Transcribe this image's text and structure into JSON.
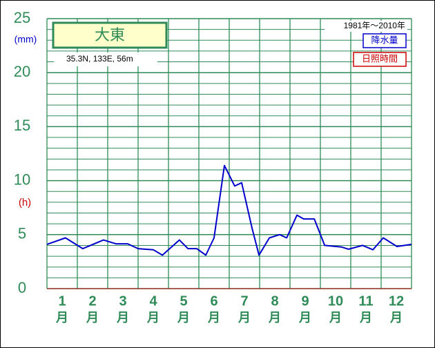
{
  "chart_data": {
    "type": "line",
    "station": "大東",
    "location": "35.3N,  133E,  56m",
    "period": "1981年〜2010年",
    "y_unit_left": "(mm)",
    "y_unit_right": "(h)",
    "x": [
      0,
      0.61,
      1.18,
      1.86,
      2.27,
      2.66,
      3.0,
      3.5,
      3.8,
      4.36,
      4.64,
      4.93,
      5.23,
      5.5,
      5.84,
      6.18,
      6.41,
      6.75,
      6.98,
      7.32,
      7.66,
      7.89,
      8.23,
      8.45,
      8.8,
      9.14,
      9.7,
      9.93,
      10.39,
      10.73,
      11.07,
      11.52,
      12
    ],
    "series": [
      {
        "name": "降水量",
        "color": "#0000cc",
        "values": [
          4.1,
          4.7,
          3.7,
          4.5,
          4.15,
          4.15,
          3.7,
          3.6,
          3.1,
          4.5,
          3.7,
          3.7,
          3.1,
          4.7,
          11.4,
          9.5,
          9.8,
          5.6,
          3.1,
          4.7,
          5.0,
          4.7,
          6.8,
          6.45,
          6.45,
          4.0,
          3.85,
          3.65,
          4.0,
          3.6,
          4.7,
          3.9,
          4.1
        ]
      }
    ],
    "extra_legend": {
      "name": "日照時間",
      "color": "#cc0000"
    },
    "xlim": [
      0,
      12
    ],
    "xticks": [
      {
        "value": 0.5,
        "label": "1"
      },
      {
        "value": 1.5,
        "label": "2"
      },
      {
        "value": 2.5,
        "label": "3"
      },
      {
        "value": 3.5,
        "label": "4"
      },
      {
        "value": 4.5,
        "label": "5"
      },
      {
        "value": 5.5,
        "label": "6"
      },
      {
        "value": 6.5,
        "label": "7"
      },
      {
        "value": 7.5,
        "label": "8"
      },
      {
        "value": 8.5,
        "label": "9"
      },
      {
        "value": 9.5,
        "label": "10"
      },
      {
        "value": 10.5,
        "label": "11"
      },
      {
        "value": 11.5,
        "label": "12"
      }
    ],
    "x_unit": "月",
    "x_grid": [
      0,
      1,
      2,
      3,
      4,
      5,
      6,
      7,
      8,
      9,
      10,
      11,
      12
    ],
    "ylim": [
      0,
      25
    ],
    "yticks": [
      0,
      5,
      10,
      15,
      20,
      25
    ],
    "y_minor_ticks": [
      1,
      2,
      3,
      4,
      6,
      7,
      8,
      9,
      11,
      12,
      13,
      14,
      16,
      17,
      18,
      19,
      21,
      22,
      23,
      24
    ],
    "grid": true,
    "grid_color": "#2e8b57"
  }
}
